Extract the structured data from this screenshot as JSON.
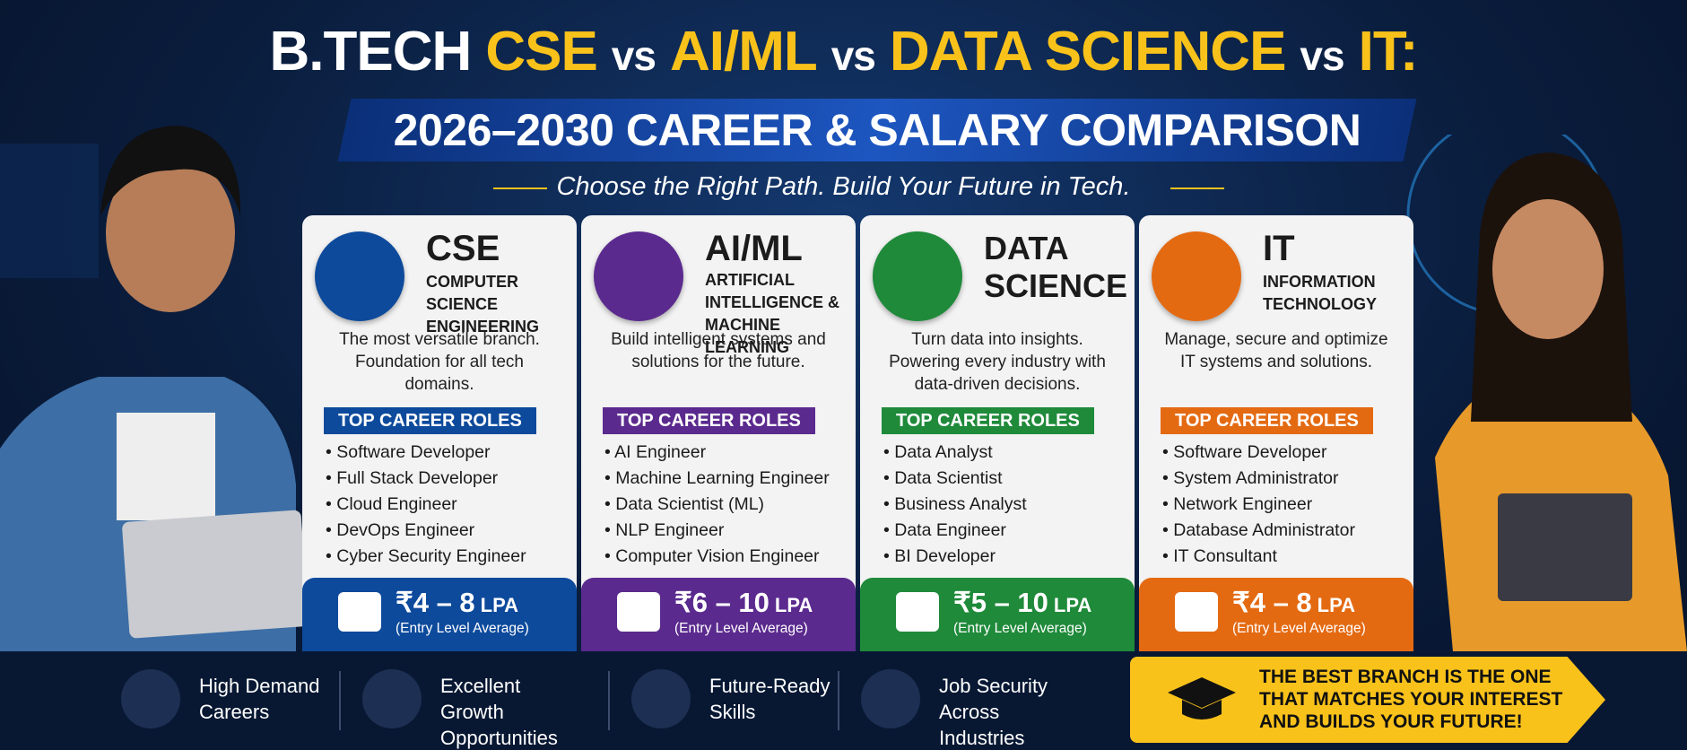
{
  "header": {
    "title": [
      "B.TECH",
      "CSE",
      "vs",
      "AI/ML",
      "vs",
      "DATA SCIENCE",
      "vs",
      "IT:"
    ],
    "subtitle": "2026–2030 CAREER & SALARY COMPARISON",
    "tagline": "Choose the Right Path. Build Your Future in Tech."
  },
  "cards": [
    {
      "name": "CSE",
      "full_name": "COMPUTER SCIENCE ENGINEERING",
      "description": "The most versatile branch. Foundation for all tech domains.",
      "roles_heading": "TOP CAREER ROLES",
      "roles": [
        "Software Developer",
        "Full Stack Developer",
        "Cloud Engineer",
        "DevOps Engineer",
        "Cyber Security Engineer"
      ],
      "salary": "₹4 – 8",
      "salary_unit": "LPA",
      "salary_note": "(Entry Level Average)"
    },
    {
      "name": "AI/ML",
      "full_name": "ARTIFICIAL INTELLIGENCE & MACHINE LEARNING",
      "description": "Build intelligent systems and solutions for the future.",
      "roles_heading": "TOP CAREER ROLES",
      "roles": [
        "AI Engineer",
        "Machine Learning Engineer",
        "Data Scientist (ML)",
        "NLP Engineer",
        "Computer Vision Engineer"
      ],
      "salary": "₹6 – 10",
      "salary_unit": "LPA",
      "salary_note": "(Entry Level Average)"
    },
    {
      "name": "DATA SCIENCE",
      "full_name": "",
      "description": "Turn data into insights. Powering every industry with data-driven decisions.",
      "roles_heading": "TOP CAREER ROLES",
      "roles": [
        "Data Analyst",
        "Data Scientist",
        "Business Analyst",
        "Data Engineer",
        "BI Developer"
      ],
      "salary": "₹5 – 10",
      "salary_unit": "LPA",
      "salary_note": "(Entry Level Average)"
    },
    {
      "name": "IT",
      "full_name": "INFORMATION TECHNOLOGY",
      "description": "Manage, secure and optimize IT systems and solutions.",
      "roles_heading": "TOP CAREER ROLES",
      "roles": [
        "Software Developer",
        "System Administrator",
        "Network Engineer",
        "Database Administrator",
        "IT Consultant"
      ],
      "salary": "₹4 – 8",
      "salary_unit": "LPA",
      "salary_note": "(Entry Level Average)"
    }
  ],
  "footer": {
    "features": [
      "High Demand Careers",
      "Excellent Growth Opportunities",
      "Future-Ready Skills",
      "Job Security Across Industries"
    ],
    "callout": "THE BEST BRANCH IS THE ONE THAT MATCHES YOUR INTEREST AND BUILDS YOUR FUTURE!"
  }
}
